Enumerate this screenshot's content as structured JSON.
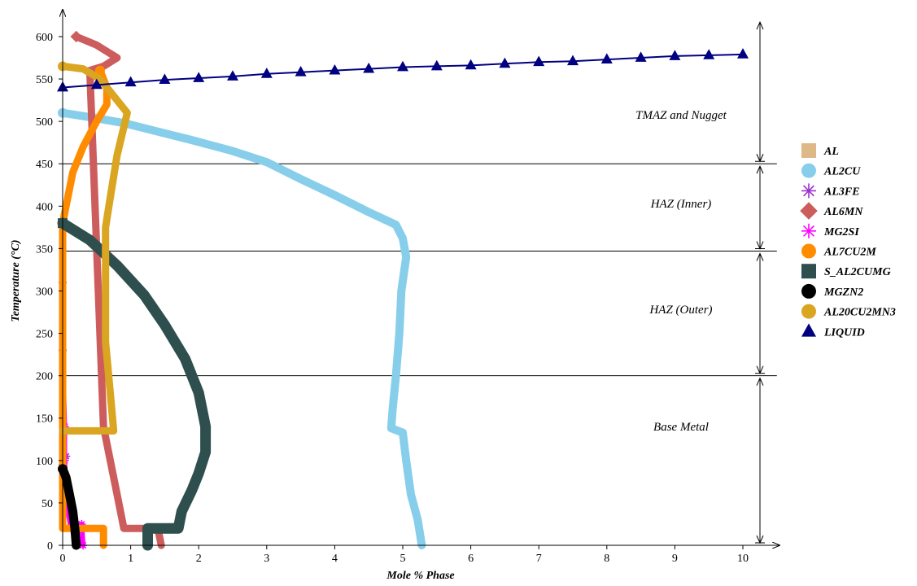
{
  "chart_data": {
    "type": "line",
    "title": "",
    "xlabel": "Mole % Phase",
    "ylabel": "Temperature (°C)",
    "ylabel_parts": {
      "main": "Temperature (",
      "degree": "°",
      "unit": "C)"
    },
    "xlim": [
      0,
      10.5
    ],
    "ylim": [
      0,
      625
    ],
    "x_ticks": [
      "0",
      "1",
      "2",
      "3",
      "4",
      "5",
      "6",
      "7",
      "8",
      "9",
      "10"
    ],
    "y_ticks": [
      "0",
      "50",
      "100",
      "150",
      "200",
      "250",
      "300",
      "350",
      "400",
      "450",
      "500",
      "550",
      "600"
    ],
    "grid": false,
    "legend_position": "right",
    "region_boundaries": [
      {
        "temperature": 450,
        "x_end": 10.5
      },
      {
        "temperature": 347,
        "x_end": 10.5
      },
      {
        "temperature": 200,
        "x_end": 10.5
      }
    ],
    "regions": [
      {
        "label": "TMAZ and Nugget",
        "temperature_range": [
          450,
          620
        ]
      },
      {
        "label": "HAZ (Inner)",
        "temperature_range": [
          347,
          450
        ]
      },
      {
        "label": "HAZ (Outer)",
        "temperature_range": [
          200,
          347
        ]
      },
      {
        "label": "Base Metal",
        "temperature_range": [
          0,
          200
        ]
      }
    ],
    "series": [
      {
        "name": "AL",
        "color": "#DEB887",
        "marker": "square",
        "points": [
          [
            1.3,
            20
          ],
          [
            1.5,
            20
          ],
          [
            1.6,
            20
          ]
        ]
      },
      {
        "name": "AL2CU",
        "color": "#87CEEB",
        "marker": "circle",
        "points": [
          [
            0,
            510
          ],
          [
            0.4,
            505
          ],
          [
            0.9,
            498
          ],
          [
            1.4,
            488
          ],
          [
            1.9,
            478
          ],
          [
            2.5,
            465
          ],
          [
            3.0,
            452
          ],
          [
            3.5,
            432
          ],
          [
            4.0,
            413
          ],
          [
            4.5,
            393
          ],
          [
            4.9,
            378
          ],
          [
            5.0,
            362
          ],
          [
            5.05,
            340
          ],
          [
            4.98,
            300
          ],
          [
            4.95,
            250
          ],
          [
            4.9,
            200
          ],
          [
            4.85,
            160
          ],
          [
            4.83,
            138
          ],
          [
            5.0,
            133
          ],
          [
            5.05,
            100
          ],
          [
            5.12,
            60
          ],
          [
            5.22,
            30
          ],
          [
            5.28,
            0
          ]
        ]
      },
      {
        "name": "AL3FE",
        "color": "#9932CC",
        "marker": "asterisk",
        "points": [
          [
            0.0,
            95
          ],
          [
            0.05,
            105
          ]
        ]
      },
      {
        "name": "AL6MN",
        "color": "#CD5C5C",
        "marker": "diamond",
        "points": [
          [
            0.2,
            600
          ],
          [
            0.5,
            590
          ],
          [
            0.8,
            575
          ],
          [
            0.6,
            565
          ],
          [
            0.4,
            560
          ],
          [
            0.6,
            140
          ],
          [
            0.7,
            100
          ],
          [
            0.8,
            60
          ],
          [
            0.9,
            20
          ],
          [
            1.4,
            20
          ],
          [
            1.45,
            0
          ]
        ]
      },
      {
        "name": "MG2SI",
        "color": "#FF00FF",
        "marker": "asterisk",
        "points": [
          [
            0.0,
            310
          ],
          [
            0.0,
            230
          ],
          [
            0.03,
            140
          ],
          [
            0.03,
            100
          ],
          [
            0.05,
            60
          ],
          [
            0.08,
            40
          ],
          [
            0.12,
            20
          ],
          [
            0.2,
            22
          ],
          [
            0.28,
            25
          ],
          [
            0.3,
            0
          ]
        ]
      },
      {
        "name": "AL7CU2M",
        "color": "#FF8C00",
        "marker": "circle",
        "points": [
          [
            0.55,
            560
          ],
          [
            0.65,
            540
          ],
          [
            0.65,
            520
          ],
          [
            0.5,
            500
          ],
          [
            0.3,
            470
          ],
          [
            0.15,
            440
          ],
          [
            0.05,
            400
          ],
          [
            0.0,
            380
          ],
          [
            0.0,
            362
          ],
          [
            0.0,
            20
          ],
          [
            0.6,
            20
          ],
          [
            0.6,
            0
          ]
        ]
      },
      {
        "name": "S_AL2CUMG",
        "color": "#2F4F4F",
        "marker": "square",
        "points": [
          [
            0.0,
            380
          ],
          [
            0.4,
            360
          ],
          [
            0.8,
            330
          ],
          [
            1.2,
            295
          ],
          [
            1.5,
            260
          ],
          [
            1.8,
            220
          ],
          [
            2.0,
            180
          ],
          [
            2.1,
            140
          ],
          [
            2.1,
            110
          ],
          [
            2.0,
            85
          ],
          [
            1.9,
            65
          ],
          [
            1.75,
            40
          ],
          [
            1.7,
            20
          ],
          [
            1.25,
            20
          ],
          [
            1.25,
            0
          ]
        ]
      },
      {
        "name": "MGZN2",
        "color": "#000000",
        "marker": "circle",
        "points": [
          [
            0.0,
            90
          ],
          [
            0.05,
            80
          ],
          [
            0.1,
            60
          ],
          [
            0.15,
            40
          ],
          [
            0.18,
            20
          ],
          [
            0.2,
            0
          ]
        ]
      },
      {
        "name": "AL20CU2MN3",
        "color": "#DAA520",
        "marker": "circle",
        "points": [
          [
            0.0,
            565
          ],
          [
            0.3,
            562
          ],
          [
            0.55,
            550
          ],
          [
            0.75,
            530
          ],
          [
            0.95,
            510
          ],
          [
            0.8,
            460
          ],
          [
            0.7,
            410
          ],
          [
            0.63,
            375
          ],
          [
            0.63,
            300
          ],
          [
            0.63,
            240
          ],
          [
            0.7,
            180
          ],
          [
            0.75,
            135
          ],
          [
            0.0,
            135
          ]
        ]
      },
      {
        "name": "LIQUID",
        "color": "#000080",
        "marker": "triangle",
        "points": [
          [
            0,
            540
          ],
          [
            0.5,
            543
          ],
          [
            1,
            546
          ],
          [
            1.5,
            549
          ],
          [
            2,
            551
          ],
          [
            2.5,
            553
          ],
          [
            3,
            556
          ],
          [
            3.5,
            558
          ],
          [
            4,
            560
          ],
          [
            4.5,
            562
          ],
          [
            5,
            564
          ],
          [
            5.5,
            565
          ],
          [
            6,
            566
          ],
          [
            6.5,
            568
          ],
          [
            7,
            570
          ],
          [
            7.5,
            571
          ],
          [
            8,
            573
          ],
          [
            8.5,
            575
          ],
          [
            9,
            577
          ],
          [
            9.5,
            578
          ],
          [
            10,
            579
          ]
        ]
      }
    ]
  }
}
